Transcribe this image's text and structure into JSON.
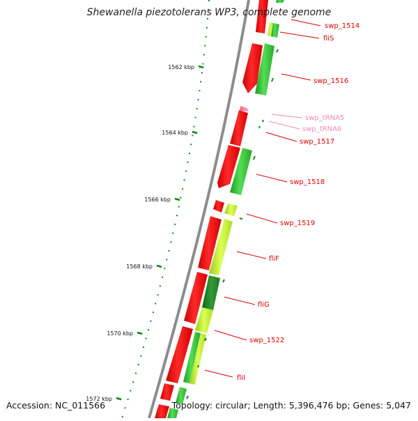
{
  "title": "Shewanella piezotolerans WP3, complete genome",
  "footer": {
    "accession": "Accession: NC_011566",
    "topology": "Topology: circular; Length: 5,396,476 bp; Genes: 5,047"
  },
  "colors": {
    "forward_gene": "#ff0000",
    "reverse_gene": "#33cc33",
    "gene_label": "#dd0000",
    "trna": "#ff88aa",
    "trna_label": "#ee88bb",
    "backbone": "#888888",
    "tick": "#008800",
    "yellow_green_gene": "#ccff33",
    "dark_green_gene": "#228822"
  },
  "ticks": [
    {
      "label": "1562 kbp"
    },
    {
      "label": "1564 kbp"
    },
    {
      "label": "1566 kbp"
    },
    {
      "label": "1568 kbp"
    },
    {
      "label": "1570 kbp"
    },
    {
      "label": "1572 kbp"
    }
  ],
  "gene_labels": [
    {
      "text": "swp_1514",
      "kind": "gene"
    },
    {
      "text": "fliS",
      "kind": "gene"
    },
    {
      "text": "swp_1516",
      "kind": "gene"
    },
    {
      "text": "swp_tRNA5",
      "kind": "trna"
    },
    {
      "text": "swp_tRNA6",
      "kind": "trna"
    },
    {
      "text": "swp_1517",
      "kind": "gene"
    },
    {
      "text": "swp_1518",
      "kind": "gene"
    },
    {
      "text": "swp_1519",
      "kind": "gene"
    },
    {
      "text": "fliF",
      "kind": "gene"
    },
    {
      "text": "fliG",
      "kind": "gene"
    },
    {
      "text": "swp_1522",
      "kind": "gene"
    },
    {
      "text": "fliI",
      "kind": "gene"
    }
  ]
}
